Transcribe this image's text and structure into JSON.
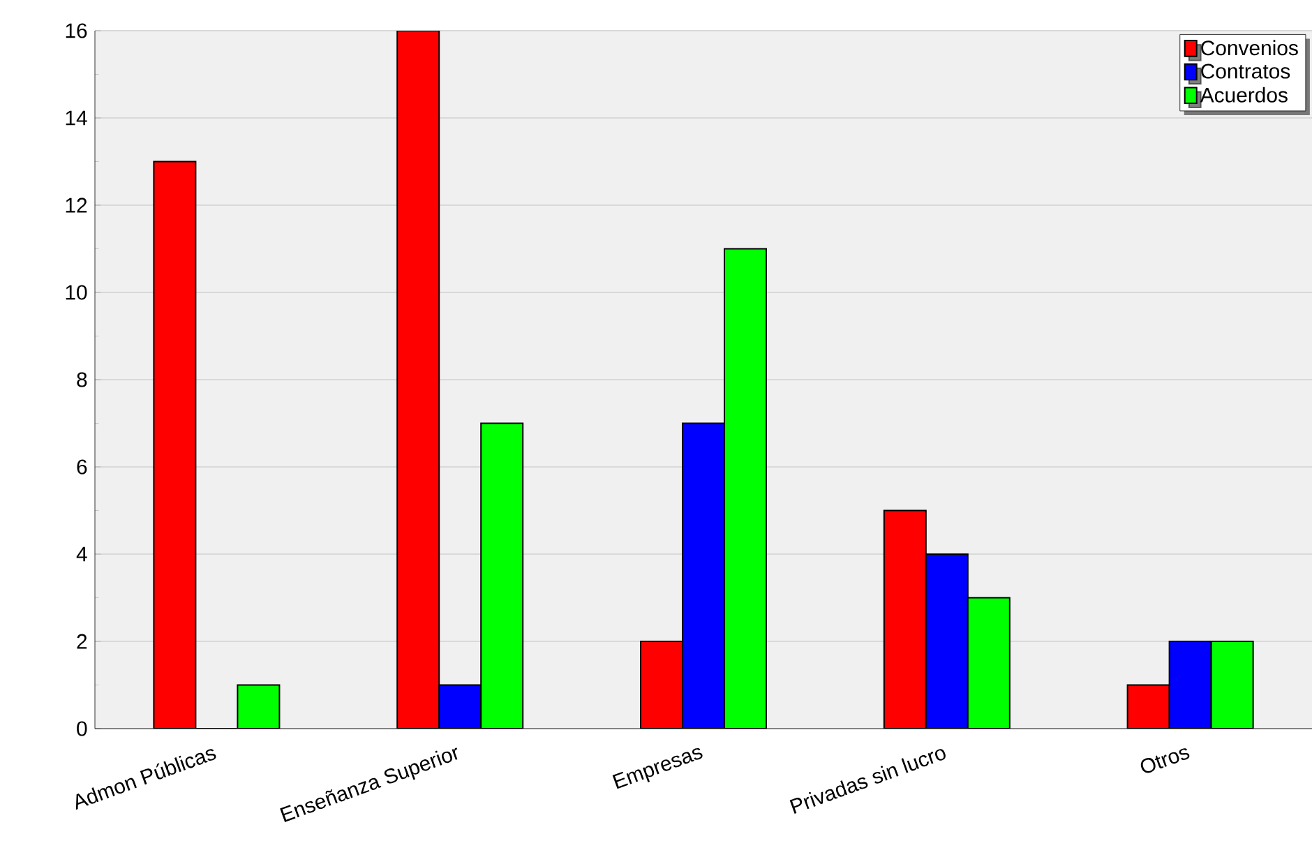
{
  "chart_data": {
    "type": "bar",
    "categories": [
      "Admon Públicas",
      "Enseñanza Superior",
      "Empresas",
      "Privadas sin lucro",
      "Otros"
    ],
    "series": [
      {
        "name": "Convenios",
        "color": "#ff0000",
        "values": [
          13,
          16,
          2,
          5,
          1
        ]
      },
      {
        "name": "Contratos",
        "color": "#0000ff",
        "values": [
          0,
          1,
          7,
          4,
          2
        ]
      },
      {
        "name": "Acuerdos",
        "color": "#00ff00",
        "values": [
          1,
          7,
          11,
          3,
          2
        ]
      }
    ],
    "ylim": [
      0,
      16
    ],
    "yticks": [
      0,
      2,
      4,
      6,
      8,
      10,
      12,
      14,
      16
    ],
    "grid": "y",
    "legend": "top right"
  }
}
